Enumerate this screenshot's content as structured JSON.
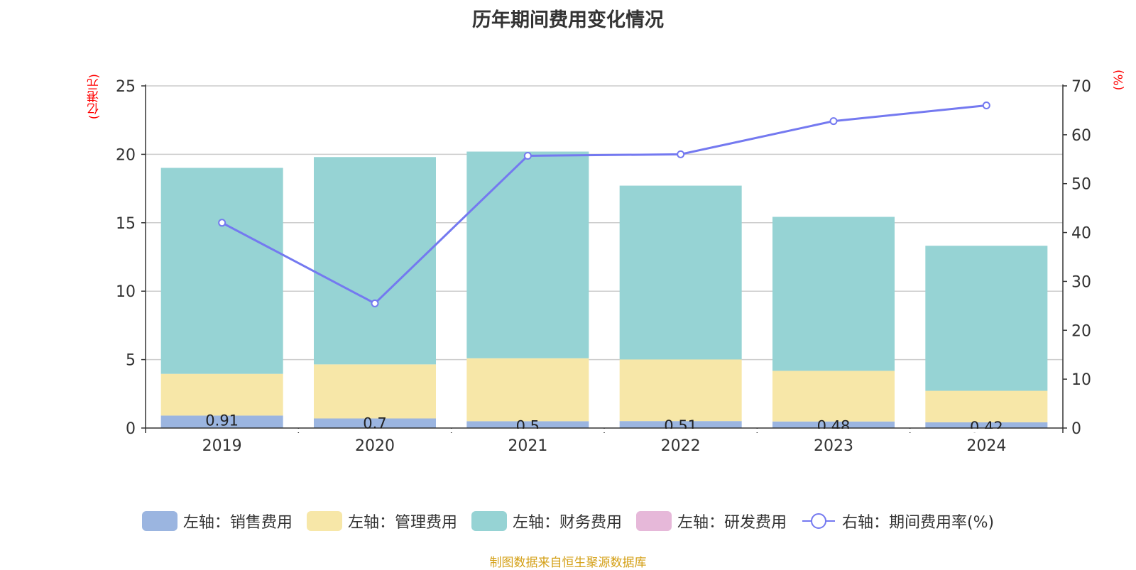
{
  "chart_data": {
    "type": "bar",
    "title": "历年期间费用变化情况",
    "left_axis_unit": "(亿港元)",
    "right_axis_unit": "(%)",
    "categories": [
      "2019",
      "2020",
      "2021",
      "2022",
      "2023",
      "2024"
    ],
    "ylim_left": [
      0,
      25
    ],
    "yticks_left": [
      "0",
      "5",
      "10",
      "15",
      "20",
      "25"
    ],
    "ylim_right": [
      0,
      70
    ],
    "yticks_right": [
      "0",
      "10",
      "20",
      "30",
      "40",
      "50",
      "60",
      "70"
    ],
    "series": [
      {
        "name": "左轴：销售费用",
        "axis": "left",
        "type": "stacked-bar",
        "color": "#9bb5e0",
        "values": [
          0.91,
          0.7,
          0.5,
          0.51,
          0.48,
          0.42
        ],
        "labels": [
          "0.91",
          "0.7",
          "0.5",
          "0.51",
          "0.48",
          "0.42"
        ]
      },
      {
        "name": "左轴：管理费用",
        "axis": "left",
        "type": "stacked-bar",
        "color": "#f7e7a8",
        "values": [
          3.05,
          3.95,
          4.6,
          4.5,
          3.7,
          2.3
        ]
      },
      {
        "name": "左轴：财务费用",
        "axis": "left",
        "type": "stacked-bar",
        "color": "#96d3d4",
        "values": [
          15.05,
          15.15,
          15.1,
          12.7,
          11.25,
          10.6
        ]
      },
      {
        "name": "左轴：研发费用",
        "axis": "left",
        "type": "stacked-bar",
        "color": "#e6b8d9",
        "values": [
          0,
          0,
          0,
          0,
          0,
          0
        ]
      },
      {
        "name": "右轴：期间费用率(%)",
        "axis": "right",
        "type": "line",
        "color": "#7479f0",
        "values": [
          42.0,
          25.5,
          55.7,
          56.0,
          62.8,
          66.0
        ]
      }
    ],
    "grid": true,
    "legend_position": "bottom"
  },
  "source_note": "制图数据来自恒生聚源数据库"
}
